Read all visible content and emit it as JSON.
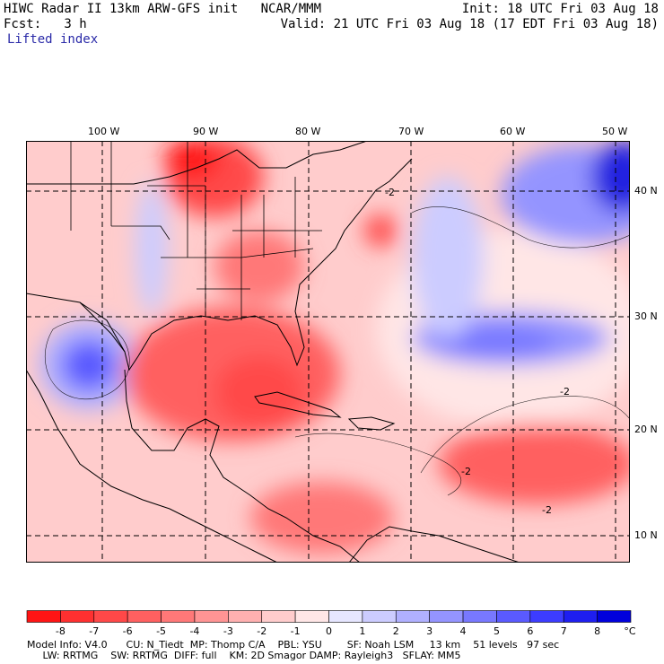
{
  "header": {
    "title": "HIWC Radar II 13km ARW-GFS init   NCAR/MMM",
    "init": "Init: 18 UTC Fri 03 Aug 18",
    "fcst": "Fcst:   3 h",
    "valid": "Valid: 21 UTC Fri 03 Aug 18 (17 EDT Fri 03 Aug 18)",
    "field": "Lifted index"
  },
  "map": {
    "lon_labels": [
      "100 W",
      "90 W",
      "80 W",
      "70 W",
      "60 W",
      "50 W"
    ],
    "lat_labels": [
      "40 N",
      "30 N",
      "20 N",
      "10 N"
    ],
    "contour_label": "-2"
  },
  "colorbar": {
    "unit": "°C",
    "labels": [
      "-8",
      "-7",
      "-6",
      "-5",
      "-4",
      "-3",
      "-2",
      "-1",
      "0",
      "1",
      "2",
      "3",
      "4",
      "5",
      "6",
      "7",
      "8"
    ],
    "colors": [
      "#ff1414",
      "#ff3030",
      "#ff4848",
      "#ff6060",
      "#ff7878",
      "#ff9494",
      "#ffb0b0",
      "#ffcccc",
      "#ffe6e6",
      "#e6e6ff",
      "#ccccff",
      "#b0b0ff",
      "#9494ff",
      "#7878ff",
      "#5a5aff",
      "#3c3cff",
      "#1e1ef0",
      "#0000dc"
    ]
  },
  "model_info": {
    "line1": "Model Info: V4.0      CU: N_Tiedt  MP: Thomp C/A    PBL: YSU        SF: Noah LSM     13 km    51 levels   97 sec",
    "line2": "     LW: RRTMG    SW: RRTMG  DIFF: full    KM: 2D Smagor DAMP: Rayleigh3   SFLAY: MM5"
  }
}
